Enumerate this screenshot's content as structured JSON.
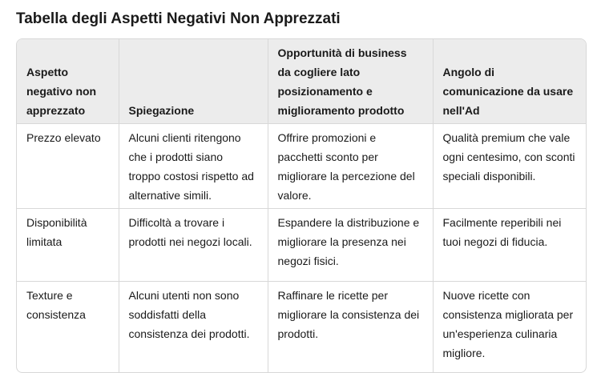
{
  "header": {
    "title": "Tabella degli Aspetti Negativi Non Apprezzati"
  },
  "table": {
    "columns": [
      "Aspetto negativo non apprezzato",
      "Spiegazione",
      "Opportunità di business da cogliere lato posizionamento e miglioramento prodotto",
      "Angolo di comunicazione da usare nell'Ad"
    ],
    "rows": [
      [
        "Prezzo elevato",
        "Alcuni clienti ritengono che i prodotti siano troppo costosi rispetto ad alternative simili.",
        "Offrire promozioni e pacchetti sconto per migliorare la percezione del valore.",
        "Qualità premium che vale ogni centesimo, con sconti speciali disponibili."
      ],
      [
        "Disponibilità limitata",
        "Difficoltà a trovare i prodotti nei negozi locali.",
        "Espandere la distribuzione e migliorare la presenza nei negozi fisici.",
        "Facilmente reperibili nei tuoi negozi di fiducia."
      ],
      [
        "Texture e consistenza",
        "Alcuni utenti non sono soddisfatti della consistenza dei prodotti.",
        "Raffinare le ricette per migliorare la consistenza dei prodotti.",
        "Nuove ricette con consistenza migliorata per un'esperienza culinaria migliore."
      ]
    ]
  }
}
